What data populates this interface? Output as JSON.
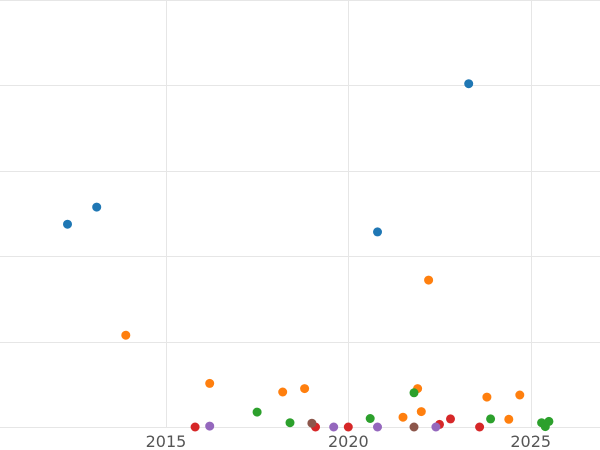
{
  "chart_data": {
    "type": "scatter",
    "title": "",
    "xlabel": "",
    "ylabel": "",
    "xlim": [
      2010.45,
      2026.9
    ],
    "ylim": [
      0,
      100
    ],
    "x_ticks": [
      2015,
      2020,
      2025
    ],
    "y_ticks": [
      0,
      20,
      40,
      60,
      80,
      100
    ],
    "grid": true,
    "legend": "none",
    "series": [
      {
        "color": "#1f77b4",
        "points": [
          [
            2012.3,
            47.5
          ],
          [
            2013.1,
            51.5
          ],
          [
            2020.8,
            45.7
          ],
          [
            2023.3,
            80.4
          ]
        ]
      },
      {
        "color": "#ff7f0e",
        "points": [
          [
            2013.9,
            21.5
          ],
          [
            2016.2,
            10.2
          ],
          [
            2018.2,
            8.2
          ],
          [
            2018.8,
            9.0
          ],
          [
            2021.5,
            2.3
          ],
          [
            2021.9,
            9.0
          ],
          [
            2022.0,
            3.6
          ],
          [
            2022.2,
            34.4
          ],
          [
            2023.8,
            7.0
          ],
          [
            2024.4,
            1.8
          ],
          [
            2024.7,
            7.5
          ]
        ]
      },
      {
        "color": "#2ca02c",
        "points": [
          [
            2017.5,
            3.5
          ],
          [
            2018.4,
            1.0
          ],
          [
            2020.6,
            2.0
          ],
          [
            2021.8,
            8.0
          ],
          [
            2023.9,
            1.9
          ],
          [
            2025.3,
            1.0
          ],
          [
            2025.5,
            1.3
          ],
          [
            2025.4,
            0.1
          ]
        ]
      },
      {
        "color": "#d62728",
        "points": [
          [
            2015.8,
            0
          ],
          [
            2019.1,
            0
          ],
          [
            2020.0,
            0
          ],
          [
            2022.5,
            0.6
          ],
          [
            2022.8,
            1.9
          ],
          [
            2023.6,
            0
          ]
        ]
      },
      {
        "color": "#9467bd",
        "points": [
          [
            2016.2,
            0.2
          ],
          [
            2019.6,
            0
          ],
          [
            2020.8,
            0
          ],
          [
            2022.4,
            0
          ]
        ]
      },
      {
        "color": "#8c564b",
        "points": [
          [
            2019.0,
            0.9
          ],
          [
            2021.8,
            0
          ]
        ]
      }
    ]
  }
}
